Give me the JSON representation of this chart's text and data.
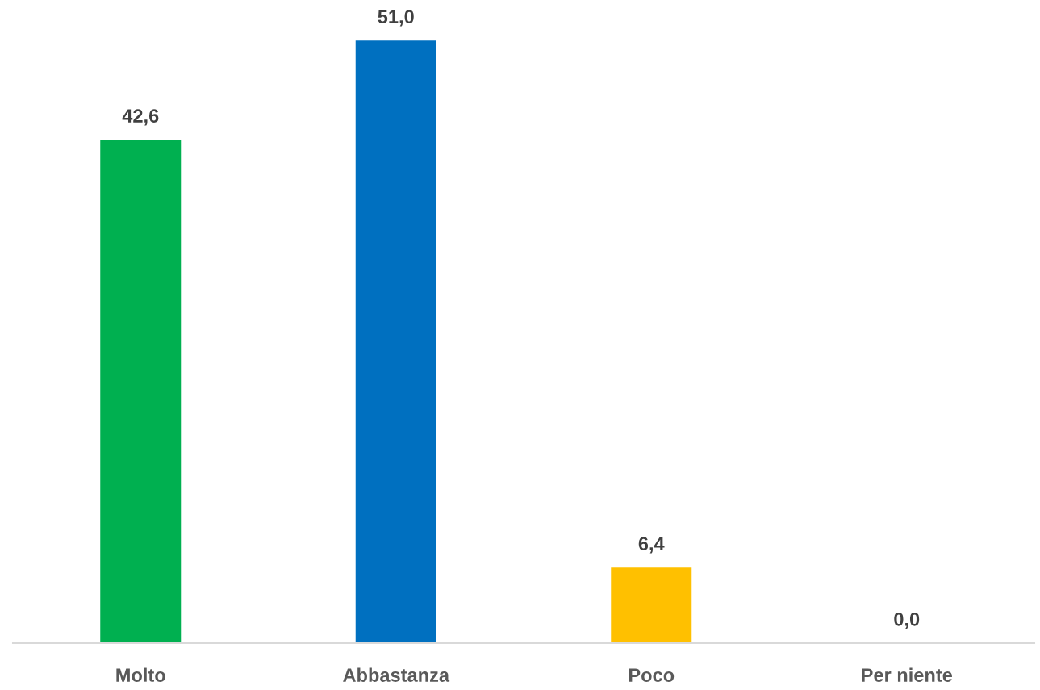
{
  "chart_data": {
    "type": "bar",
    "categories": [
      "Molto",
      "Abbastanza",
      "Poco",
      "Per niente"
    ],
    "values": [
      42.6,
      51.0,
      6.4,
      0.0
    ],
    "colors": [
      "#00b050",
      "#0070c0",
      "#ffc000",
      null
    ],
    "value_labels": [
      "42,6",
      "51,0",
      "6,4",
      "0,0"
    ],
    "tick_labels": "x"
  }
}
